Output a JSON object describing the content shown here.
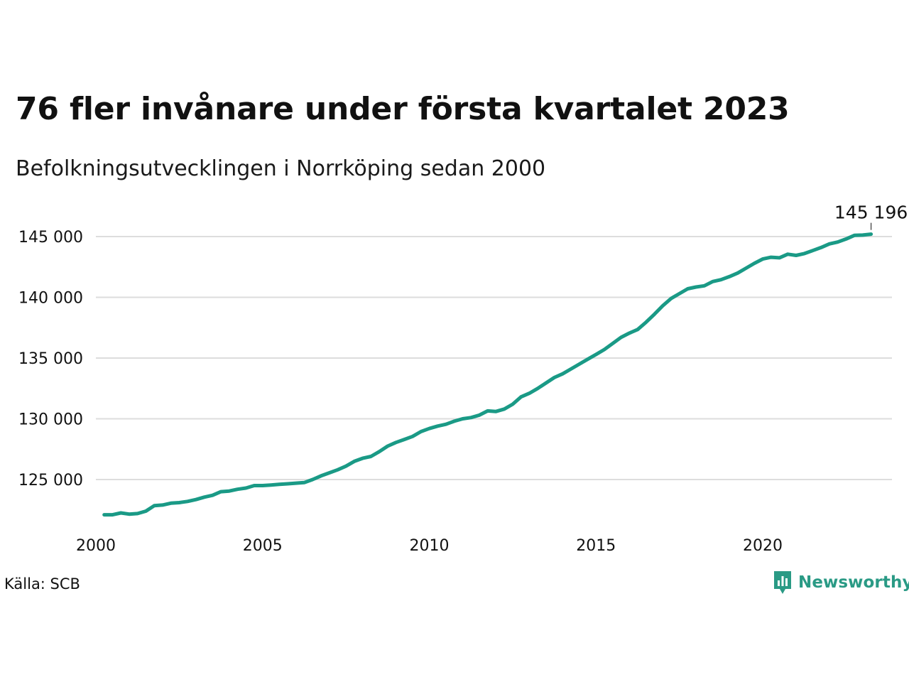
{
  "header": {
    "title": "76 fler invånare under första kvartalet 2023",
    "subtitle": "Befolkningsutvecklingen i Norrköping sedan 2000"
  },
  "footer": {
    "source": "Källa: SCB",
    "brand": "Newsworthy"
  },
  "colors": {
    "line": "#1a9a86",
    "grid": "#dddddd",
    "text": "#111111",
    "brand": "#2a9a85"
  },
  "chart_data": {
    "type": "line",
    "title": "76 fler invånare under första kvartalet 2023",
    "subtitle": "Befolkningsutvecklingen i Norrköping sedan 2000",
    "xlabel": "",
    "ylabel": "",
    "xlim": [
      2000,
      2024
    ],
    "ylim": [
      121000,
      146500
    ],
    "x_ticks": [
      2000,
      2005,
      2010,
      2015,
      2020
    ],
    "x_tick_labels": [
      "2000",
      "2005",
      "2010",
      "2015",
      "2020"
    ],
    "y_ticks": [
      125000,
      130000,
      135000,
      140000,
      145000
    ],
    "y_tick_labels": [
      "125 000",
      "130 000",
      "135 000",
      "140 000",
      "145 000"
    ],
    "grid": "horizontal",
    "end_label": "145 196",
    "series": [
      {
        "x": [
          2000.25,
          2000.5,
          2000.75,
          2001,
          2001.25,
          2001.5,
          2001.75,
          2002,
          2002.25,
          2002.5,
          2002.75,
          2003,
          2003.25,
          2003.5,
          2003.75,
          2004,
          2004.25,
          2004.5,
          2004.75,
          2005,
          2005.25,
          2005.5,
          2005.75,
          2006,
          2006.25,
          2006.5,
          2006.75,
          2007,
          2007.25,
          2007.5,
          2007.75,
          2008,
          2008.25,
          2008.5,
          2008.75,
          2009,
          2009.25,
          2009.5,
          2009.75,
          2010,
          2010.25,
          2010.5,
          2010.75,
          2011,
          2011.25,
          2011.5,
          2011.75,
          2012,
          2012.25,
          2012.5,
          2012.75,
          2013,
          2013.25,
          2013.5,
          2013.75,
          2014,
          2014.25,
          2014.5,
          2014.75,
          2015,
          2015.25,
          2015.5,
          2015.75,
          2016,
          2016.25,
          2016.5,
          2016.75,
          2017,
          2017.25,
          2017.5,
          2017.75,
          2018,
          2018.25,
          2018.5,
          2018.75,
          2019,
          2019.25,
          2019.5,
          2019.75,
          2020,
          2020.25,
          2020.5,
          2020.75,
          2021,
          2021.25,
          2021.5,
          2021.75,
          2022,
          2022.25,
          2022.5,
          2022.75,
          2023,
          2023.25
        ],
        "values": [
          122100,
          122100,
          122250,
          122150,
          122200,
          122400,
          122850,
          122900,
          123050,
          123100,
          123200,
          123350,
          123550,
          123700,
          124000,
          124050,
          124200,
          124300,
          124500,
          124500,
          124550,
          124600,
          124650,
          124700,
          124750,
          125000,
          125300,
          125550,
          125800,
          126100,
          126500,
          126750,
          126900,
          127300,
          127750,
          128050,
          128300,
          128550,
          128950,
          129200,
          129400,
          129550,
          129800,
          130000,
          130100,
          130300,
          130650,
          130600,
          130800,
          131200,
          131800,
          132100,
          132500,
          132950,
          133400,
          133700,
          134100,
          134500,
          134900,
          135300,
          135700,
          136200,
          136700,
          137050,
          137350,
          137950,
          138600,
          139300,
          139900,
          140300,
          140700,
          140850,
          140950,
          141300,
          141450,
          141700,
          142000,
          142400,
          142800,
          143150,
          143300,
          143250,
          143550,
          143450,
          143600,
          143850,
          144100,
          144400,
          144550,
          144800,
          145100,
          145120,
          145196
        ]
      }
    ]
  }
}
